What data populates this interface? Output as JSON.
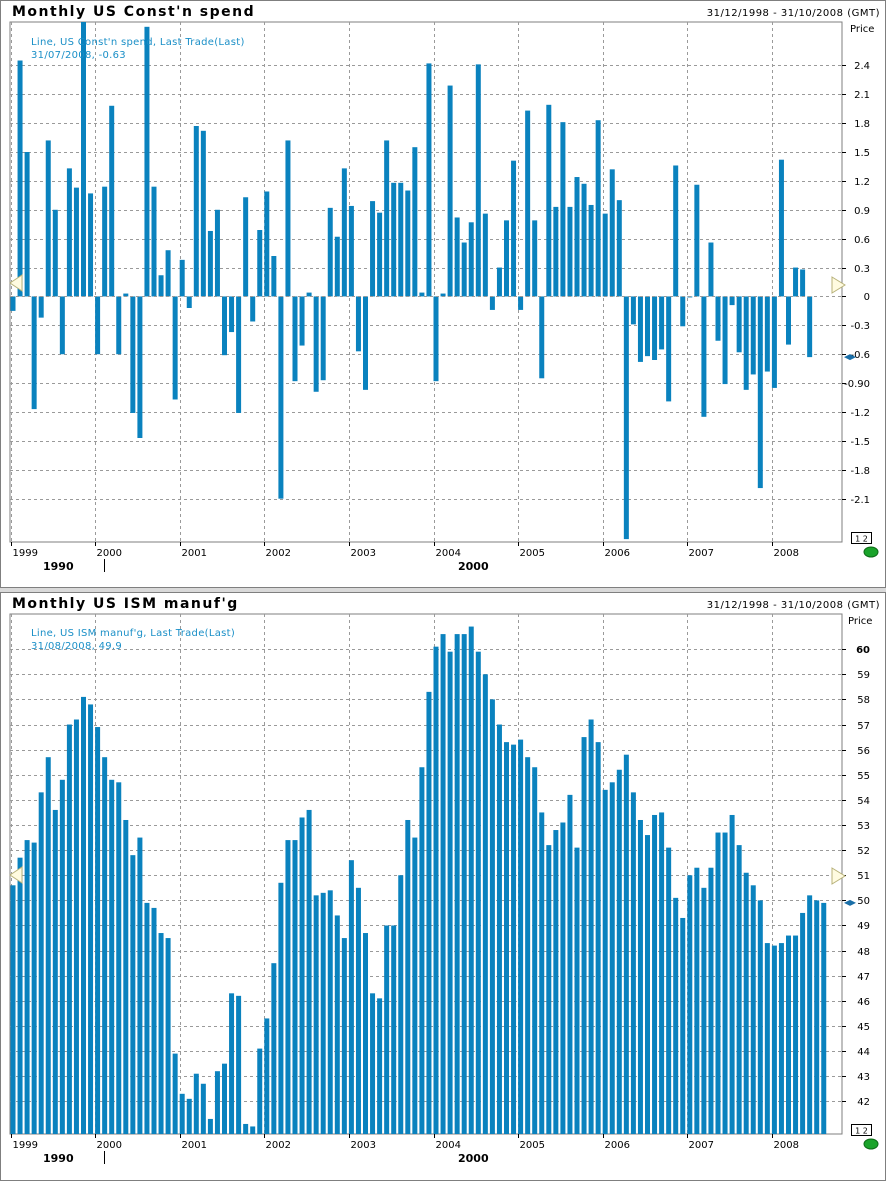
{
  "chart_data": [
    {
      "type": "bar",
      "title": "Monthly US Const'n spend",
      "date_range": "31/12/1998 - 31/10/2008 (GMT)",
      "ylabel": "Price",
      "legend_line1": "Line, US Const'n spend, Last Trade(Last)",
      "legend_line2": "31/07/2008, -0.63",
      "last_value": -0.63,
      "ylim": [
        -2.55,
        2.85
      ],
      "y_ticks": [
        2.4,
        2.1,
        1.8,
        1.5,
        1.2,
        0.9,
        0.6,
        0.3,
        0,
        -0.3,
        -0.6,
        -0.9,
        -1.2,
        -1.5,
        -1.8,
        -2.1
      ],
      "y_tick_labels": [
        "2.4",
        "2.1",
        "1.8",
        "1.5",
        "1.2",
        "0.9",
        "0.6",
        "0.3",
        "0",
        "-0.3",
        "-0.6",
        "-0.90",
        "-1.2",
        "-1.5",
        "-1.8",
        "-2.1"
      ],
      "x_tick_labels": [
        "1999",
        "2000",
        "2001",
        "2002",
        "2003",
        "2004",
        "2005",
        "2006",
        "2007",
        "2008"
      ],
      "era_labels": [
        "1990",
        "2000"
      ],
      "scale_badge": "1 2",
      "x_start": "1999-01",
      "values": [
        -0.15,
        2.45,
        1.5,
        -1.17,
        -0.22,
        1.62,
        0.9,
        -0.6,
        1.33,
        1.13,
        2.85,
        1.07,
        -0.6,
        1.14,
        1.98,
        -0.6,
        0.03,
        -1.21,
        -1.47,
        2.8,
        1.14,
        0.22,
        0.48,
        -1.07,
        0.38,
        -0.12,
        1.77,
        1.72,
        0.68,
        0.9,
        -0.61,
        -0.37,
        -1.21,
        1.03,
        -0.26,
        0.69,
        1.09,
        0.42,
        -2.1,
        1.62,
        -0.88,
        -0.51,
        0.04,
        -0.99,
        -0.87,
        0.92,
        0.62,
        1.33,
        0.94,
        -0.57,
        -0.97,
        0.99,
        0.87,
        1.62,
        1.18,
        1.18,
        1.1,
        1.55,
        0.04,
        2.42,
        -0.88,
        0.03,
        2.19,
        0.82,
        0.56,
        0.77,
        2.41,
        0.86,
        -0.14,
        0.3,
        0.79,
        1.41,
        -0.14,
        1.93,
        0.79,
        -0.85,
        1.99,
        0.93,
        1.81,
        0.93,
        1.24,
        1.17,
        0.95,
        1.83,
        0.86,
        1.32,
        1.0,
        -2.52,
        -0.29,
        -0.68,
        -0.62,
        -0.66,
        -0.55,
        -1.09,
        1.36,
        -0.31,
        0.0,
        1.16,
        -1.25,
        0.56,
        -0.46,
        -0.91,
        -0.09,
        -0.58,
        -0.97,
        -0.81,
        -1.99,
        -0.78,
        -0.95,
        1.42,
        -0.5,
        0.3,
        0.28,
        -0.63
      ]
    },
    {
      "type": "bar",
      "title": "Monthly US ISM manuf'g",
      "date_range": "31/12/1998 - 31/10/2008 (GMT)",
      "ylabel": "Price",
      "legend_line1": "Line, US ISM manuf'g, Last Trade(Last)",
      "legend_line2": "31/08/2008, 49.9",
      "last_value": 49.9,
      "ylim": [
        40.7,
        61.4
      ],
      "y_ticks": [
        60,
        59,
        58,
        57,
        56,
        55,
        54,
        53,
        52,
        51,
        50,
        49,
        48,
        47,
        46,
        45,
        44,
        43,
        42
      ],
      "y_tick_labels": [
        "60",
        "59",
        "58",
        "57",
        "56",
        "55",
        "54",
        "53",
        "52",
        "51",
        "50",
        "49",
        "48",
        "47",
        "46",
        "45",
        "44",
        "43",
        "42"
      ],
      "x_tick_labels": [
        "1999",
        "2000",
        "2001",
        "2002",
        "2003",
        "2004",
        "2005",
        "2006",
        "2007",
        "2008"
      ],
      "era_labels": [
        "1990",
        "2000"
      ],
      "scale_badge": "1 2",
      "x_start": "1999-01",
      "values": [
        50.6,
        51.7,
        52.4,
        52.3,
        54.3,
        55.7,
        53.6,
        54.8,
        57.0,
        57.2,
        58.1,
        57.8,
        56.9,
        55.7,
        54.8,
        54.7,
        53.2,
        51.8,
        52.5,
        49.9,
        49.7,
        48.7,
        48.5,
        43.9,
        42.3,
        42.1,
        43.1,
        42.7,
        41.3,
        43.2,
        43.5,
        46.3,
        46.2,
        41.1,
        41.0,
        44.1,
        45.3,
        47.5,
        50.7,
        52.4,
        52.4,
        53.3,
        53.6,
        50.2,
        50.3,
        50.4,
        49.4,
        48.5,
        51.6,
        50.5,
        48.7,
        46.3,
        46.1,
        49.0,
        49.0,
        51.0,
        53.2,
        52.5,
        55.3,
        58.3,
        60.1,
        60.6,
        59.9,
        60.6,
        60.6,
        60.9,
        59.9,
        59.0,
        58.0,
        57.0,
        56.3,
        56.2,
        56.4,
        55.7,
        55.3,
        53.5,
        52.2,
        52.8,
        53.1,
        54.2,
        52.1,
        56.5,
        57.2,
        56.3,
        54.4,
        54.7,
        55.2,
        55.8,
        54.3,
        53.2,
        52.6,
        53.4,
        53.5,
        52.1,
        50.1,
        49.3,
        51.0,
        51.3,
        50.5,
        51.3,
        52.7,
        52.7,
        53.4,
        52.2,
        51.1,
        50.6,
        50.0,
        48.3,
        48.2,
        48.3,
        48.6,
        48.6,
        49.5,
        50.2,
        50.0,
        49.9
      ]
    }
  ]
}
